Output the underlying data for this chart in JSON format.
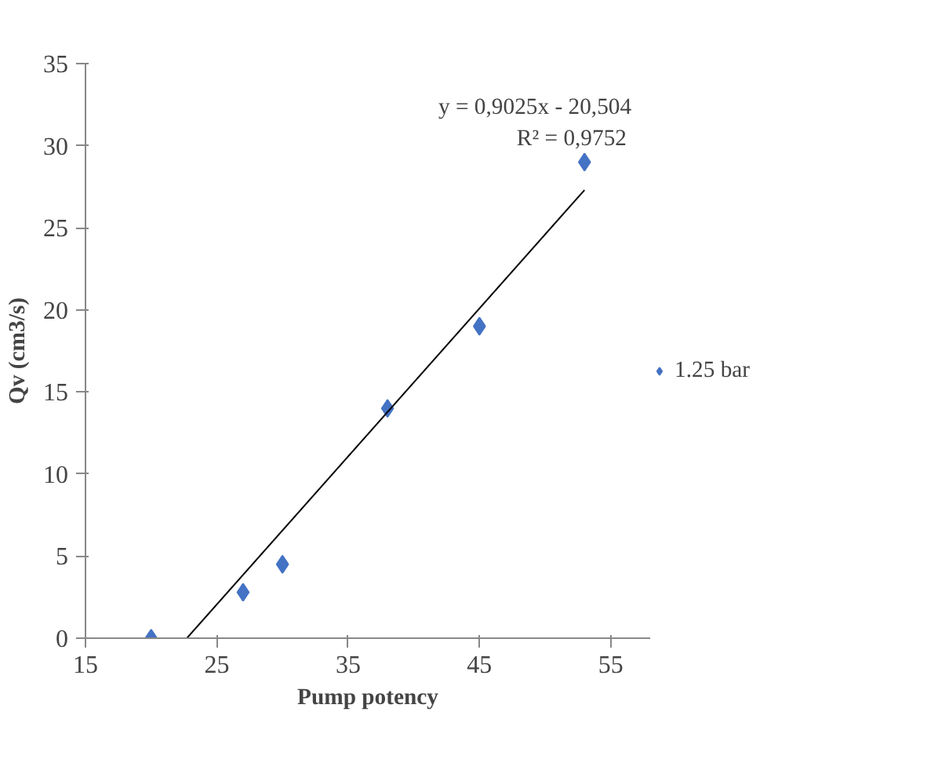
{
  "chart_data": {
    "type": "scatter",
    "xlabel": "Pump potency",
    "ylabel": "Qv (cm3/s)",
    "series": [
      {
        "name": "1.25 bar",
        "color": "#4472c4",
        "marker": "diamond",
        "x": [
          20,
          27,
          30,
          38,
          45,
          53
        ],
        "values": [
          0,
          2.8,
          4.5,
          14,
          19,
          29
        ]
      },
      {
        "type": "line",
        "color": "#000000",
        "marker": "none",
        "x": [
          22.72,
          53
        ],
        "values": [
          0,
          27.3
        ]
      }
    ],
    "annotations": [
      "y = 0,9025x - 20,504",
      "R² = 0,9752"
    ],
    "xlim": [
      15,
      58
    ],
    "ylim": [
      0,
      35
    ],
    "xticks": [
      15,
      25,
      35,
      45,
      55
    ],
    "yticks": [
      0,
      5,
      10,
      15,
      20,
      25,
      30,
      35
    ],
    "grid": false,
    "legend": "right"
  }
}
